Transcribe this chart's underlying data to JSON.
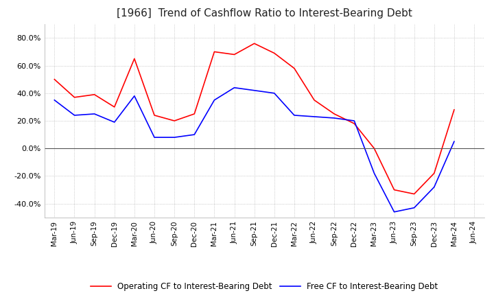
{
  "title": "[1966]  Trend of Cashflow Ratio to Interest-Bearing Debt",
  "title_fontsize": 11,
  "x_labels": [
    "Mar-19",
    "Jun-19",
    "Sep-19",
    "Dec-19",
    "Mar-20",
    "Jun-20",
    "Sep-20",
    "Dec-20",
    "Mar-21",
    "Jun-21",
    "Sep-21",
    "Dec-21",
    "Mar-22",
    "Jun-22",
    "Sep-22",
    "Dec-22",
    "Mar-23",
    "Jun-23",
    "Sep-23",
    "Dec-23",
    "Mar-24",
    "Jun-24"
  ],
  "operating_cf": [
    50.0,
    37.0,
    39.0,
    30.0,
    65.0,
    24.0,
    20.0,
    25.0,
    70.0,
    68.0,
    76.0,
    69.0,
    58.0,
    35.0,
    25.0,
    18.0,
    0.0,
    -30.0,
    -33.0,
    -18.0,
    28.0,
    null
  ],
  "free_cf": [
    35.0,
    24.0,
    25.0,
    19.0,
    38.0,
    8.0,
    8.0,
    10.0,
    35.0,
    44.0,
    42.0,
    40.0,
    24.0,
    23.0,
    22.0,
    20.0,
    -18.0,
    -46.0,
    -43.0,
    -28.0,
    5.0,
    null
  ],
  "ylim": [
    -50.0,
    90.0
  ],
  "yticks": [
    -40.0,
    -20.0,
    0.0,
    20.0,
    40.0,
    60.0,
    80.0
  ],
  "operating_color": "#ff0000",
  "free_color": "#0000ff",
  "background_color": "#ffffff",
  "grid_color": "#aaaaaa",
  "zero_line_color": "#555555",
  "legend_labels": [
    "Operating CF to Interest-Bearing Debt",
    "Free CF to Interest-Bearing Debt"
  ]
}
